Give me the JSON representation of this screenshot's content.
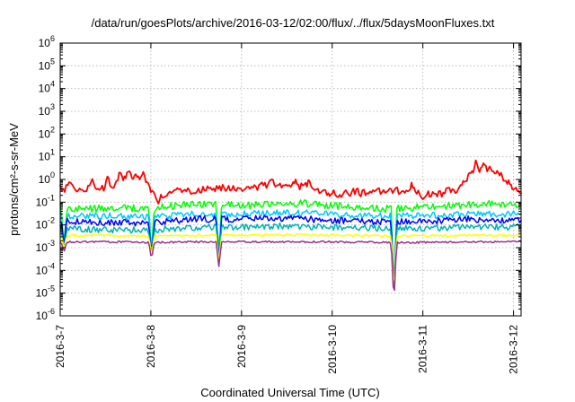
{
  "chart_data": {
    "type": "line",
    "title": "/data/run/goesPlots/archive/2016-03-12/02:00/flux/../flux/5daysMoonFluxes.txt",
    "xlabel": "Coordinated Universal Time (UTC)",
    "ylabel": "protons/cm²-s-sr-MeV",
    "y_scale": "log",
    "ylim": [
      1e-06,
      1000000.0
    ],
    "xlim": [
      "2016-03-07T00:00",
      "2016-03-12T02:00"
    ],
    "grid": true,
    "x_ticks": [
      "2016-3-7",
      "2016-3-8",
      "2016-3-9",
      "2016-3-10",
      "2016-3-11",
      "2016-3-12"
    ],
    "y_ticks": [
      {
        "base": "10",
        "exp": "6"
      },
      {
        "base": "10",
        "exp": "5"
      },
      {
        "base": "10",
        "exp": "4"
      },
      {
        "base": "10",
        "exp": "3"
      },
      {
        "base": "10",
        "exp": "2"
      },
      {
        "base": "10",
        "exp": "1"
      },
      {
        "base": "10",
        "exp": "0"
      },
      {
        "base": "10",
        "exp": "-1"
      },
      {
        "base": "10",
        "exp": "-2"
      },
      {
        "base": "10",
        "exp": "-3"
      },
      {
        "base": "10",
        "exp": "-4"
      },
      {
        "base": "10",
        "exp": "-5"
      },
      {
        "base": "10",
        "exp": "-6"
      }
    ],
    "series": [
      {
        "color": "#ff0000",
        "values": [
          [
            "2016-03-07T00:00",
            0.5
          ],
          [
            "2016-03-07T01:12",
            0.4
          ],
          [
            "2016-03-07T02:24",
            0.9
          ],
          [
            "2016-03-07T04:00",
            0.25
          ],
          [
            "2016-03-07T05:30",
            0.5
          ],
          [
            "2016-03-07T07:00",
            0.35
          ],
          [
            "2016-03-07T08:30",
            1.0
          ],
          [
            "2016-03-07T10:00",
            0.3
          ],
          [
            "2016-03-07T11:30",
            0.45
          ],
          [
            "2016-03-07T12:30",
            1.2
          ],
          [
            "2016-03-07T13:30",
            0.4
          ],
          [
            "2016-03-07T14:30",
            0.6
          ],
          [
            "2016-03-07T16:00",
            2.0
          ],
          [
            "2016-03-07T17:00",
            1.0
          ],
          [
            "2016-03-07T18:00",
            2.5
          ],
          [
            "2016-03-07T19:00",
            1.2
          ],
          [
            "2016-03-07T20:00",
            2.0
          ],
          [
            "2016-03-07T21:00",
            0.8
          ],
          [
            "2016-03-07T22:00",
            1.5
          ],
          [
            "2016-03-07T23:00",
            0.7
          ],
          [
            "2016-03-07T23:59",
            0.4
          ],
          [
            "2016-03-08T01:00",
            0.2
          ],
          [
            "2016-03-08T02:00",
            0.12
          ],
          [
            "2016-03-08T03:00",
            0.18
          ],
          [
            "2016-03-08T05:00",
            0.22
          ],
          [
            "2016-03-08T07:00",
            0.3
          ],
          [
            "2016-03-08T09:00",
            0.25
          ],
          [
            "2016-03-08T11:00",
            0.35
          ],
          [
            "2016-03-08T13:00",
            0.3
          ],
          [
            "2016-03-08T15:00",
            0.4
          ],
          [
            "2016-03-08T17:00",
            0.35
          ],
          [
            "2016-03-08T19:00",
            0.45
          ],
          [
            "2016-03-08T21:00",
            0.4
          ],
          [
            "2016-03-08T23:00",
            0.35
          ],
          [
            "2016-03-09T01:00",
            0.45
          ],
          [
            "2016-03-09T03:00",
            0.4
          ],
          [
            "2016-03-09T05:00",
            0.55
          ],
          [
            "2016-03-09T07:00",
            0.6
          ],
          [
            "2016-03-09T08:00",
            1.0
          ],
          [
            "2016-03-09T09:00",
            0.5
          ],
          [
            "2016-03-09T11:00",
            0.6
          ],
          [
            "2016-03-09T13:00",
            0.55
          ],
          [
            "2016-03-09T14:00",
            0.9
          ],
          [
            "2016-03-09T15:00",
            0.5
          ],
          [
            "2016-03-09T17:00",
            0.6
          ],
          [
            "2016-03-09T18:00",
            0.8
          ],
          [
            "2016-03-09T19:00",
            0.5
          ],
          [
            "2016-03-09T21:00",
            0.3
          ],
          [
            "2016-03-09T23:00",
            0.2
          ],
          [
            "2016-03-10T00:00",
            0.3
          ],
          [
            "2016-03-10T02:00",
            0.2
          ],
          [
            "2016-03-10T04:00",
            0.25
          ],
          [
            "2016-03-10T06:00",
            0.3
          ],
          [
            "2016-03-10T08:00",
            0.25
          ],
          [
            "2016-03-10T10:00",
            0.35
          ],
          [
            "2016-03-10T12:00",
            0.3
          ],
          [
            "2016-03-10T14:00",
            0.25
          ],
          [
            "2016-03-10T16:00",
            0.35
          ],
          [
            "2016-03-10T18:00",
            0.3
          ],
          [
            "2016-03-10T20:00",
            0.25
          ],
          [
            "2016-03-10T21:00",
            0.6
          ],
          [
            "2016-03-10T22:00",
            0.3
          ],
          [
            "2016-03-11T00:00",
            0.15
          ],
          [
            "2016-03-11T01:00",
            0.25
          ],
          [
            "2016-03-11T03:00",
            0.2
          ],
          [
            "2016-03-11T05:00",
            0.25
          ],
          [
            "2016-03-11T07:00",
            0.35
          ],
          [
            "2016-03-11T09:00",
            0.3
          ],
          [
            "2016-03-11T10:00",
            0.5
          ],
          [
            "2016-03-11T11:00",
            0.8
          ],
          [
            "2016-03-11T12:00",
            1.2
          ],
          [
            "2016-03-11T13:00",
            2.0
          ],
          [
            "2016-03-11T14:00",
            5.0
          ],
          [
            "2016-03-11T15:00",
            3.0
          ],
          [
            "2016-03-11T16:00",
            4.0
          ],
          [
            "2016-03-11T17:00",
            2.5
          ],
          [
            "2016-03-11T18:00",
            3.5
          ],
          [
            "2016-03-11T19:00",
            2.0
          ],
          [
            "2016-03-11T20:00",
            2.5
          ],
          [
            "2016-03-11T21:00",
            1.5
          ],
          [
            "2016-03-11T22:00",
            0.8
          ],
          [
            "2016-03-11T23:00",
            0.6
          ],
          [
            "2016-03-12T00:00",
            0.4
          ],
          [
            "2016-03-12T01:00",
            0.3
          ],
          [
            "2016-03-12T02:00",
            0.25
          ]
        ]
      },
      {
        "color": "#00ff00",
        "values": [
          [
            "2016-03-07T00:00",
            0.06
          ],
          [
            "2016-03-07T08:00",
            0.05
          ],
          [
            "2016-03-07T16:00",
            0.06
          ],
          [
            "2016-03-08T00:00",
            0.05
          ],
          [
            "2016-03-08T08:00",
            0.08
          ],
          [
            "2016-03-08T16:00",
            0.08
          ],
          [
            "2016-03-09T00:00",
            0.07
          ],
          [
            "2016-03-09T08:00",
            0.08
          ],
          [
            "2016-03-09T16:00",
            0.09
          ],
          [
            "2016-03-10T00:00",
            0.07
          ],
          [
            "2016-03-10T08:00",
            0.06
          ],
          [
            "2016-03-10T16:00",
            0.05
          ],
          [
            "2016-03-11T00:00",
            0.06
          ],
          [
            "2016-03-11T08:00",
            0.07
          ],
          [
            "2016-03-11T16:00",
            0.09
          ],
          [
            "2016-03-12T00:00",
            0.08
          ],
          [
            "2016-03-12T02:00",
            0.08
          ]
        ]
      },
      {
        "color": "#00c8ff",
        "values": [
          [
            "2016-03-07T00:00",
            0.025
          ],
          [
            "2016-03-07T12:00",
            0.025
          ],
          [
            "2016-03-08T00:00",
            0.022
          ],
          [
            "2016-03-08T12:00",
            0.03
          ],
          [
            "2016-03-09T00:00",
            0.03
          ],
          [
            "2016-03-09T12:00",
            0.035
          ],
          [
            "2016-03-10T00:00",
            0.03
          ],
          [
            "2016-03-10T12:00",
            0.025
          ],
          [
            "2016-03-11T00:00",
            0.025
          ],
          [
            "2016-03-11T12:00",
            0.03
          ],
          [
            "2016-03-12T00:00",
            0.03
          ],
          [
            "2016-03-12T02:00",
            0.03
          ]
        ]
      },
      {
        "color": "#0000ff",
        "values": [
          [
            "2016-03-07T00:00",
            0.015
          ],
          [
            "2016-03-07T12:00",
            0.013
          ],
          [
            "2016-03-08T00:00",
            0.012
          ],
          [
            "2016-03-08T12:00",
            0.018
          ],
          [
            "2016-03-09T00:00",
            0.018
          ],
          [
            "2016-03-09T12:00",
            0.02
          ],
          [
            "2016-03-10T00:00",
            0.016
          ],
          [
            "2016-03-10T12:00",
            0.014
          ],
          [
            "2016-03-11T00:00",
            0.014
          ],
          [
            "2016-03-11T12:00",
            0.018
          ],
          [
            "2016-03-12T00:00",
            0.016
          ],
          [
            "2016-03-12T02:00",
            0.016
          ]
        ]
      },
      {
        "color": "#00b4b4",
        "values": [
          [
            "2016-03-07T00:00",
            0.007
          ],
          [
            "2016-03-07T12:00",
            0.006
          ],
          [
            "2016-03-08T00:00",
            0.006
          ],
          [
            "2016-03-08T12:00",
            0.008
          ],
          [
            "2016-03-09T00:00",
            0.008
          ],
          [
            "2016-03-09T12:00",
            0.009
          ],
          [
            "2016-03-10T00:00",
            0.008
          ],
          [
            "2016-03-10T12:00",
            0.007
          ],
          [
            "2016-03-11T00:00",
            0.007
          ],
          [
            "2016-03-11T12:00",
            0.008
          ],
          [
            "2016-03-12T00:00",
            0.008
          ],
          [
            "2016-03-12T02:00",
            0.008
          ]
        ]
      },
      {
        "color": "#ffff00",
        "values": [
          [
            "2016-03-07T00:00",
            0.0035
          ],
          [
            "2016-03-07T12:00",
            0.0035
          ],
          [
            "2016-03-08T00:00",
            0.0032
          ],
          [
            "2016-03-08T12:00",
            0.0035
          ],
          [
            "2016-03-09T00:00",
            0.0035
          ],
          [
            "2016-03-09T12:00",
            0.0036
          ],
          [
            "2016-03-10T00:00",
            0.0035
          ],
          [
            "2016-03-10T12:00",
            0.0034
          ],
          [
            "2016-03-11T00:00",
            0.0034
          ],
          [
            "2016-03-11T12:00",
            0.0035
          ],
          [
            "2016-03-12T00:00",
            0.0035
          ],
          [
            "2016-03-12T02:00",
            0.0035
          ]
        ]
      },
      {
        "color": "#9b2f8f",
        "values": [
          [
            "2016-03-07T00:00",
            0.0018
          ],
          [
            "2016-03-07T12:00",
            0.0018
          ],
          [
            "2016-03-08T00:00",
            0.0017
          ],
          [
            "2016-03-08T12:00",
            0.0018
          ],
          [
            "2016-03-09T00:00",
            0.0018
          ],
          [
            "2016-03-09T12:00",
            0.0018
          ],
          [
            "2016-03-10T00:00",
            0.0018
          ],
          [
            "2016-03-10T12:00",
            0.0017
          ],
          [
            "2016-03-11T00:00",
            0.0017
          ],
          [
            "2016-03-11T12:00",
            0.0018
          ],
          [
            "2016-03-12T00:00",
            0.0018
          ],
          [
            "2016-03-12T02:00",
            0.0018
          ]
        ]
      }
    ],
    "dips": [
      {
        "at": "2016-03-07T01:00",
        "min": 0.0006
      },
      {
        "at": "2016-03-08T00:10",
        "min": 0.0003
      },
      {
        "at": "2016-03-08T18:00",
        "min": 0.00015
      },
      {
        "at": "2016-03-10T16:20",
        "min": 3e-06
      }
    ]
  }
}
